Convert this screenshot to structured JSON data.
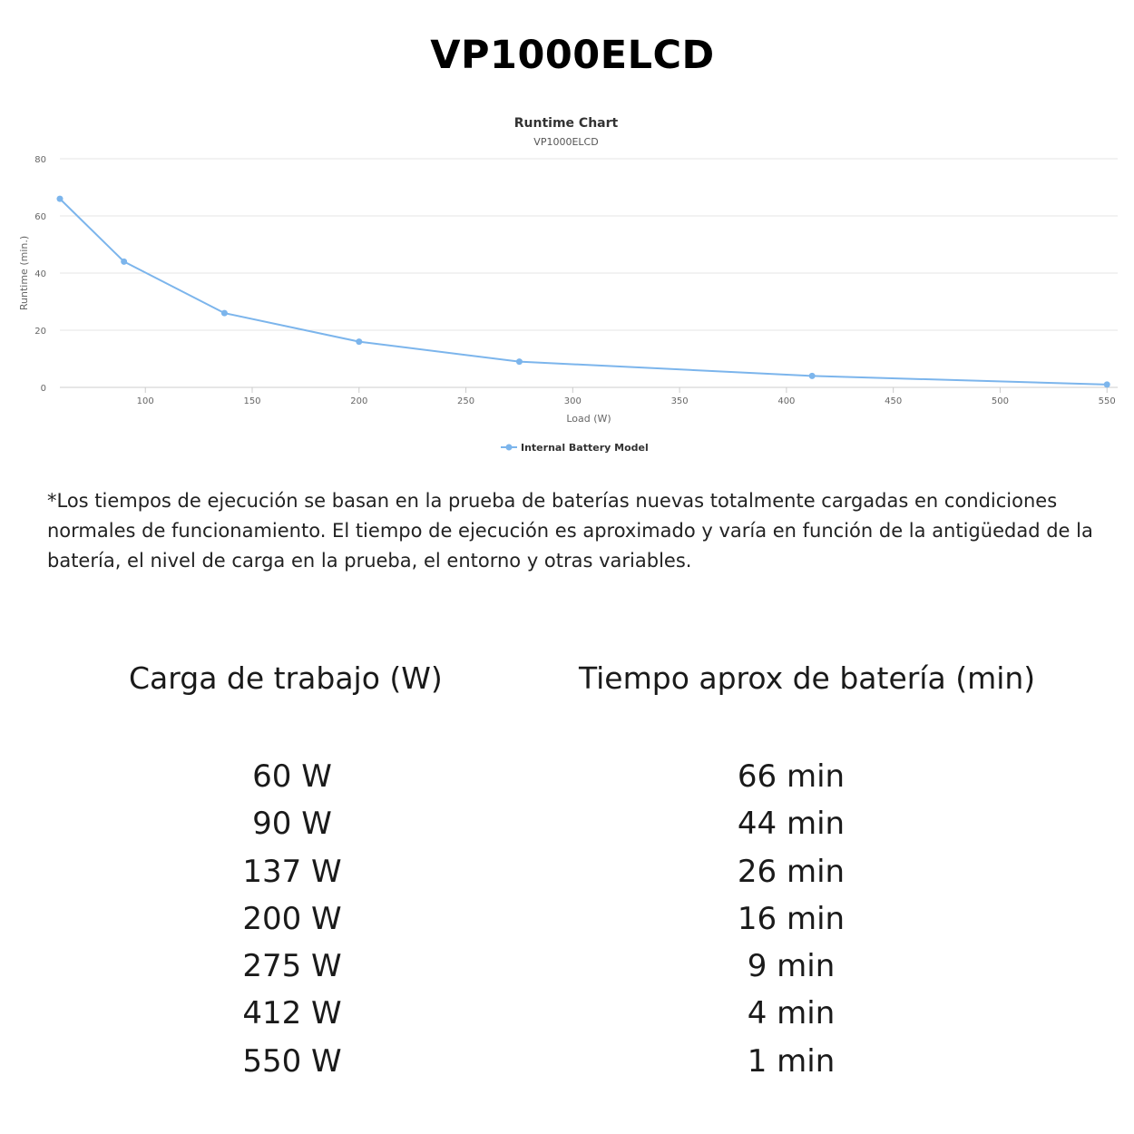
{
  "page": {
    "title": "VP1000ELCD",
    "note": "*Los tiempos de ejecución se basan en la prueba de baterías nuevas totalmente cargadas en condiciones normales de funcionamiento. El tiempo de ejecución es aproximado y varía en función de la antigüedad de la batería, el nivel de carga en la prueba, el entorno y otras variables."
  },
  "chart_data": {
    "type": "line",
    "title": "Runtime Chart",
    "subtitle": "VP1000ELCD",
    "xlabel": "Load (W)",
    "ylabel": "Runtime (min.)",
    "xlim": [
      60,
      555
    ],
    "ylim": [
      0,
      80
    ],
    "xticks": [
      100,
      150,
      200,
      250,
      300,
      350,
      400,
      450,
      500,
      550
    ],
    "yticks": [
      0,
      20,
      40,
      60,
      80
    ],
    "grid": true,
    "legend": "bottom-center",
    "series": [
      {
        "name": "Internal Battery Model",
        "color": "#7cb5ec",
        "x": [
          60,
          90,
          137,
          200,
          275,
          412,
          550
        ],
        "y": [
          66,
          44,
          26,
          16,
          9,
          4,
          1
        ]
      }
    ]
  },
  "table": {
    "headers": [
      "Carga de trabajo (W)",
      "Tiempo aprox de batería (min)"
    ],
    "loads": [
      "60 W",
      "90 W",
      "137 W",
      "200 W",
      "275 W",
      "412 W",
      "550 W"
    ],
    "times": [
      "66 min",
      "44 min",
      "26 min",
      "16 min",
      "9 min",
      "4 min",
      "1 min"
    ]
  }
}
